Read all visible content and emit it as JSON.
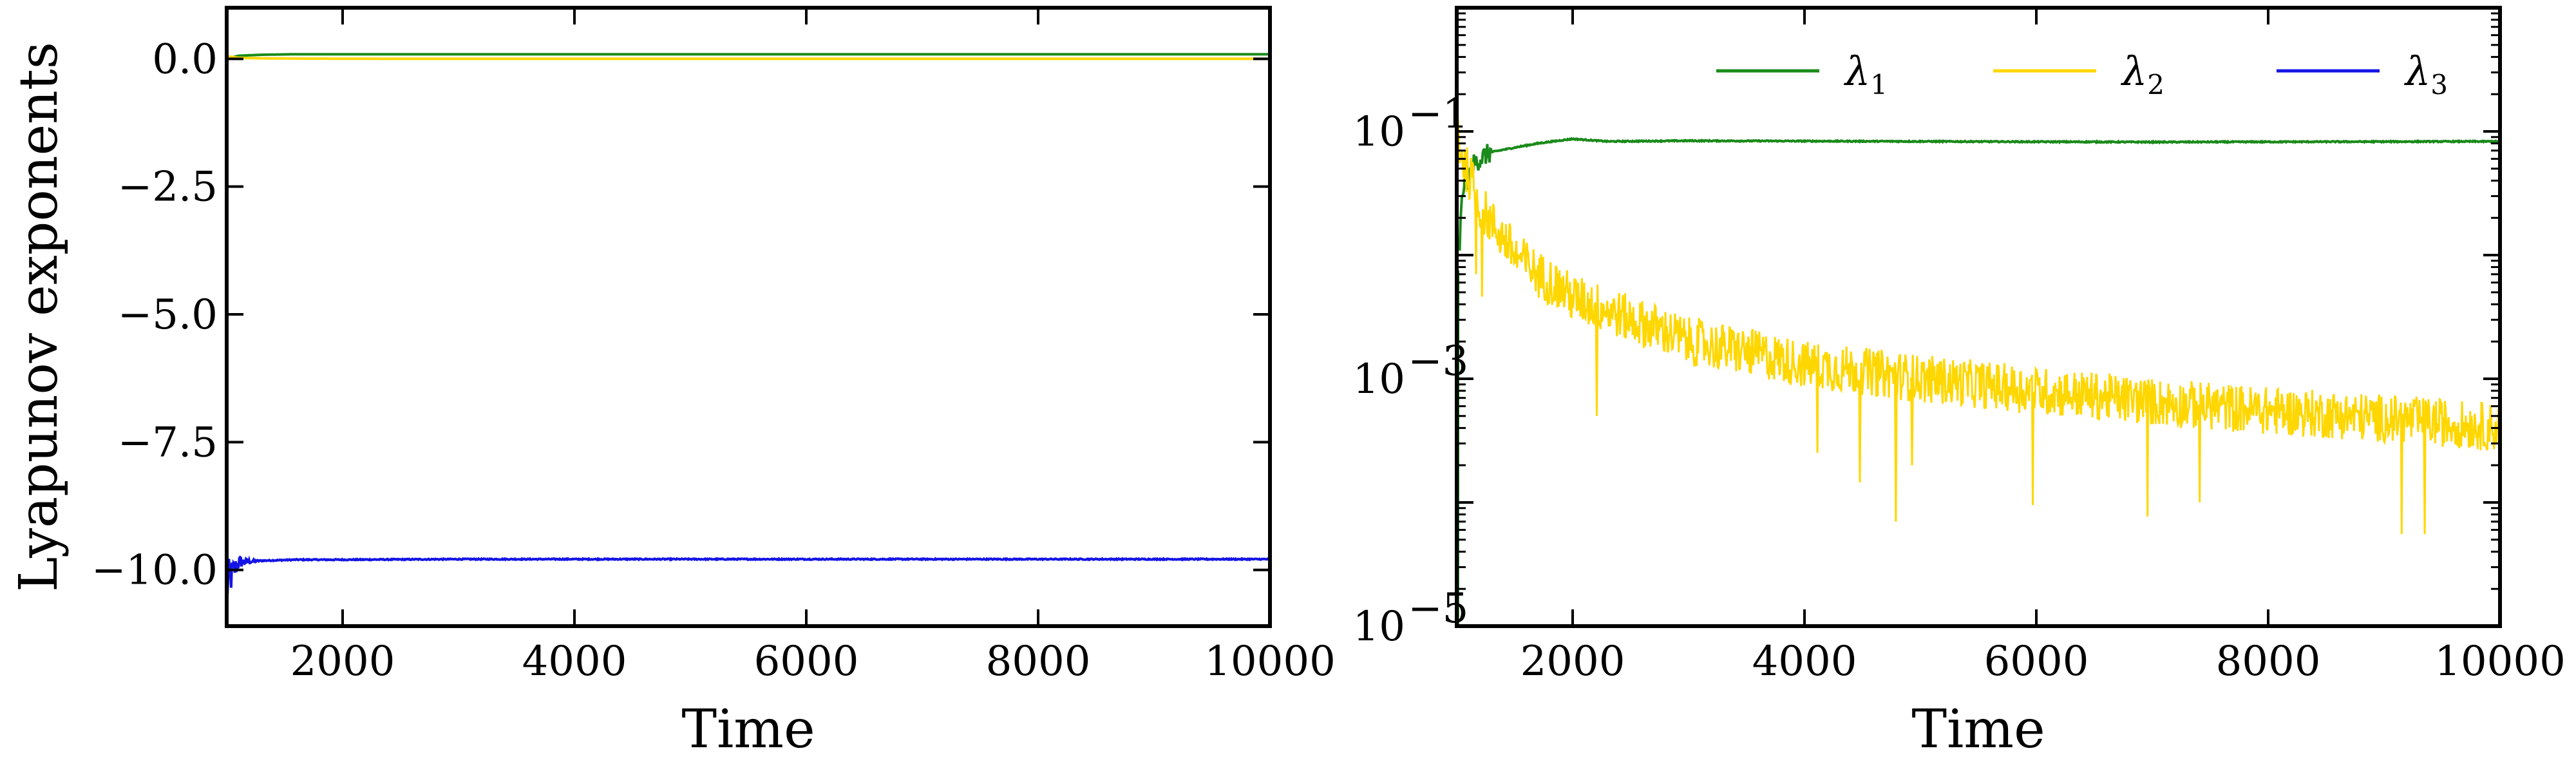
{
  "chart_data": [
    {
      "type": "line",
      "panel": "left",
      "xlabel": "Time",
      "ylabel": "Lyapunov exponents",
      "xlim": [
        1000,
        10000
      ],
      "ylim": [
        -11.1,
        1.0
      ],
      "x_ticks": [
        2000,
        4000,
        6000,
        8000,
        10000
      ],
      "x_tick_labels": [
        "2000",
        "4000",
        "6000",
        "8000",
        "10000"
      ],
      "y_ticks": [
        0.0,
        -2.5,
        -5.0,
        -7.5,
        -10.0
      ],
      "y_tick_labels": [
        "0.0",
        "−2.5",
        "−5.0",
        "−7.5",
        "−10.0"
      ],
      "grid": false,
      "series": [
        {
          "key": "lambda1",
          "color": "#1a8a1a",
          "x": [
            1000,
            1100,
            1300,
            1600,
            2000,
            3000,
            5000,
            10000
          ],
          "values": [
            0.0,
            0.06,
            0.08,
            0.09,
            0.09,
            0.09,
            0.09,
            0.09
          ]
        },
        {
          "key": "lambda2",
          "color": "#ffd700",
          "x": [
            1000,
            1100,
            1300,
            1600,
            2000,
            3000,
            5000,
            10000
          ],
          "values": [
            0.05,
            0.02,
            0.01,
            0.005,
            0.003,
            0.001,
            0.0007,
            0.0004
          ]
        },
        {
          "key": "lambda3",
          "color": "#1414e6",
          "x": [
            1000,
            1100,
            1300,
            1600,
            2000,
            3000,
            5000,
            10000
          ],
          "values": [
            -10.3,
            -9.85,
            -9.82,
            -9.8,
            -9.8,
            -9.79,
            -9.79,
            -9.79
          ]
        }
      ]
    },
    {
      "type": "line",
      "panel": "right",
      "xlabel": "Time",
      "ylabel": "",
      "yscale": "log",
      "xlim": [
        1000,
        10000
      ],
      "ylim": [
        1e-05,
        1.0
      ],
      "x_ticks": [
        2000,
        4000,
        6000,
        8000,
        10000
      ],
      "x_tick_labels": [
        "2000",
        "4000",
        "6000",
        "8000",
        "10000"
      ],
      "y_ticks": [
        0.1,
        0.001,
        1e-05
      ],
      "y_tick_labels": [
        {
          "base": "10",
          "exp": "−1"
        },
        {
          "base": "10",
          "exp": "−3"
        },
        {
          "base": "10",
          "exp": "−5"
        }
      ],
      "grid": false,
      "legend_position": "top",
      "legend": [
        {
          "symbol": "λ",
          "sub": "1",
          "color": "#1a8a1a"
        },
        {
          "symbol": "λ",
          "sub": "2",
          "color": "#ffd700"
        },
        {
          "symbol": "λ",
          "sub": "3",
          "color": "#1414e6"
        }
      ],
      "series": [
        {
          "key": "lambda1",
          "color": "#1a8a1a",
          "x": [
            1020,
            1050,
            1080,
            1100,
            1150,
            1200,
            1300,
            1500,
            1700,
            2000,
            2300,
            3000,
            5000,
            7000,
            10000
          ],
          "values": [
            0.0075,
            0.03,
            0.05,
            0.04,
            0.055,
            0.06,
            0.068,
            0.074,
            0.08,
            0.087,
            0.083,
            0.084,
            0.083,
            0.082,
            0.083
          ]
        },
        {
          "key": "lambda2",
          "color": "#ffd700",
          "x": [
            1000,
            1020,
            1050,
            1100,
            1200,
            1300,
            1500,
            1700,
            2000,
            2500,
            3000,
            4000,
            5000,
            6000,
            7000,
            8000,
            9000,
            10000
          ],
          "values": [
            0.15,
            0.08,
            0.06,
            0.045,
            0.025,
            0.018,
            0.01,
            0.007,
            0.0045,
            0.003,
            0.002,
            0.0013,
            0.001,
            0.0008,
            0.00065,
            0.00055,
            0.00048,
            0.0004
          ]
        }
      ]
    }
  ]
}
